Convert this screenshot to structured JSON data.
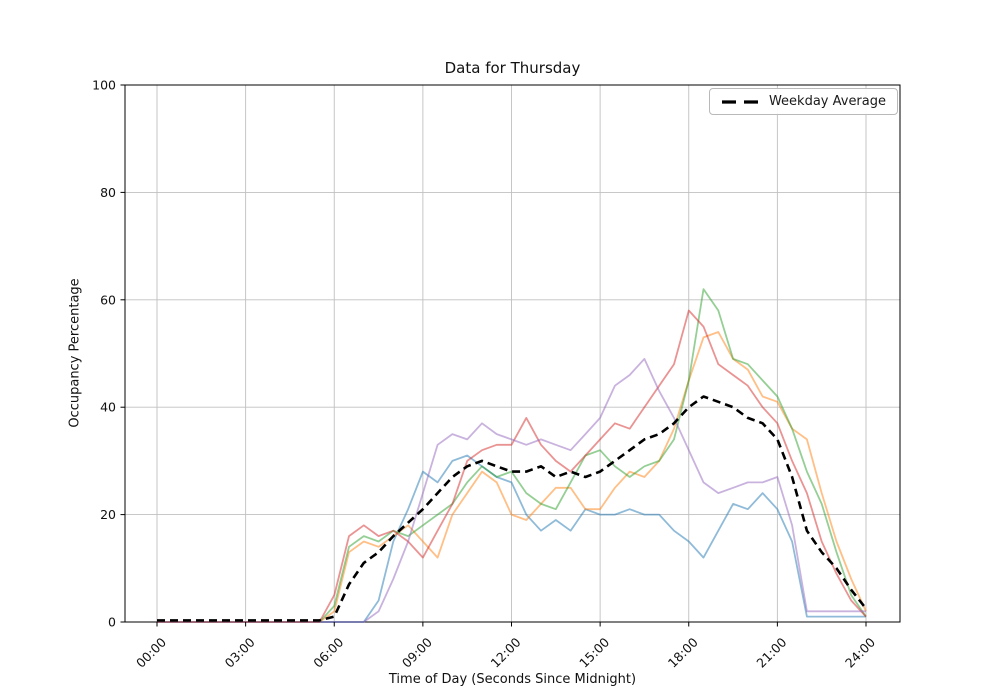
{
  "chart_data": {
    "type": "line",
    "title": "Data for Thursday",
    "xlabel": "Time of Day (Seconds Since Midnight)",
    "ylabel": "Occupancy Percentage",
    "xlim_hours": [
      0,
      24
    ],
    "ylim": [
      0,
      100
    ],
    "grid": true,
    "x_tick_hours": [
      0,
      3,
      6,
      9,
      12,
      15,
      18,
      21,
      24
    ],
    "x_tick_labels": [
      "00:00",
      "03:00",
      "06:00",
      "09:00",
      "12:00",
      "15:00",
      "18:00",
      "21:00",
      "24:00"
    ],
    "y_tick_values": [
      0,
      20,
      40,
      60,
      80,
      100
    ],
    "y_tick_labels": [
      "0",
      "20",
      "40",
      "60",
      "80",
      "100"
    ],
    "legend": {
      "position": "upper-right",
      "entries": [
        {
          "label": "Weekday Average",
          "color": "#000000",
          "dashed": true
        }
      ]
    },
    "x_hours": [
      0,
      0.5,
      1,
      1.5,
      2,
      2.5,
      3,
      3.5,
      4,
      4.5,
      5,
      5.5,
      6,
      6.5,
      7,
      7.5,
      8,
      8.5,
      9,
      9.5,
      10,
      10.5,
      11,
      11.5,
      12,
      12.5,
      13,
      13.5,
      14,
      14.5,
      15,
      15.5,
      16,
      16.5,
      17,
      17.5,
      18,
      18.5,
      19,
      19.5,
      20,
      20.5,
      21,
      21.5,
      22,
      22.5,
      23,
      23.5,
      24
    ],
    "series": [
      {
        "name": "day-line-1",
        "color": "#1f77b4",
        "opacity": 0.5,
        "width": 1.8,
        "dashed": false,
        "values": [
          0,
          0,
          0,
          0,
          0,
          0,
          0,
          0,
          0,
          0,
          0,
          0,
          0,
          0,
          0,
          4,
          15,
          21,
          28,
          26,
          30,
          31,
          29,
          27,
          26,
          20,
          17,
          19,
          17,
          21,
          20,
          20,
          21,
          20,
          20,
          17,
          15,
          12,
          17,
          22,
          21,
          24,
          21,
          15,
          1,
          1,
          1,
          1,
          1
        ]
      },
      {
        "name": "day-line-2",
        "color": "#ff7f0e",
        "opacity": 0.5,
        "width": 1.8,
        "dashed": false,
        "values": [
          0,
          0,
          0,
          0,
          0,
          0,
          0,
          0,
          0,
          0,
          0,
          0,
          2,
          13,
          15,
          14,
          16,
          18,
          15,
          12,
          20,
          24,
          28,
          26,
          20,
          19,
          22,
          25,
          25,
          21,
          21,
          25,
          28,
          27,
          30,
          36,
          45,
          53,
          54,
          49,
          47,
          42,
          41,
          36,
          34,
          24,
          15,
          8,
          2
        ]
      },
      {
        "name": "day-line-3",
        "color": "#2ca02c",
        "opacity": 0.5,
        "width": 1.8,
        "dashed": false,
        "values": [
          0,
          0,
          0,
          0,
          0,
          0,
          0,
          0,
          0,
          0,
          0,
          0,
          3,
          14,
          16,
          15,
          17,
          16,
          18,
          20,
          22,
          26,
          29,
          27,
          28,
          24,
          22,
          21,
          26,
          31,
          32,
          29,
          27,
          29,
          30,
          34,
          45,
          62,
          58,
          49,
          48,
          45,
          42,
          36,
          28,
          22,
          13,
          5,
          1
        ]
      },
      {
        "name": "day-line-4",
        "color": "#d62728",
        "opacity": 0.5,
        "width": 1.8,
        "dashed": false,
        "values": [
          0,
          0,
          0,
          0,
          0,
          0,
          0,
          0,
          0,
          0,
          0,
          0,
          5,
          16,
          18,
          16,
          17,
          15,
          12,
          17,
          22,
          30,
          32,
          33,
          33,
          38,
          33,
          30,
          28,
          31,
          34,
          37,
          36,
          40,
          44,
          48,
          58,
          55,
          48,
          46,
          44,
          40,
          37,
          30,
          24,
          15,
          9,
          4,
          1
        ]
      },
      {
        "name": "day-line-5",
        "color": "#9467bd",
        "opacity": 0.5,
        "width": 1.8,
        "dashed": false,
        "values": [
          0,
          0,
          0,
          0,
          0,
          0,
          0,
          0,
          0,
          0,
          0,
          0,
          0,
          0,
          0,
          2,
          8,
          15,
          24,
          33,
          35,
          34,
          37,
          35,
          34,
          33,
          34,
          33,
          32,
          35,
          38,
          44,
          46,
          49,
          43,
          38,
          32,
          26,
          24,
          25,
          26,
          26,
          27,
          18,
          2,
          2,
          2,
          2,
          2
        ]
      },
      {
        "name": "weekday-average",
        "color": "#000000",
        "opacity": 1,
        "width": 2.6,
        "dashed": true,
        "values": [
          0.3,
          0.3,
          0.3,
          0.3,
          0.3,
          0.3,
          0.3,
          0.3,
          0.3,
          0.3,
          0.3,
          0.3,
          1,
          7,
          11,
          13,
          16,
          18.5,
          21,
          24,
          27,
          29,
          30,
          29,
          28,
          28,
          29,
          27,
          28,
          27,
          28,
          30,
          32,
          34,
          35,
          37,
          40,
          42,
          41,
          40,
          38,
          37,
          34,
          27,
          17,
          13,
          10,
          6,
          2.5
        ]
      }
    ]
  },
  "colors": {
    "background": "#ffffff",
    "grid": "#c0c0c0",
    "axis": "#000000",
    "tick_label": "#111111"
  }
}
